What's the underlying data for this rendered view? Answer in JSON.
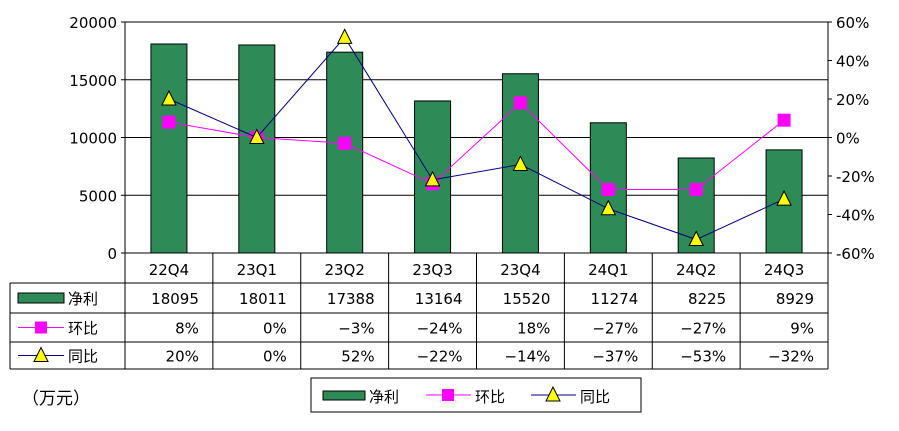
{
  "unit_label": "（万元）",
  "colors": {
    "bar": "#2E8B57",
    "mom": "#FF00FF",
    "yoy": "#000080",
    "yoy_marker": "#FFFF00"
  },
  "chart_data": {
    "type": "bar",
    "categories": [
      "22Q4",
      "23Q1",
      "23Q2",
      "23Q3",
      "23Q4",
      "24Q1",
      "24Q2",
      "24Q3"
    ],
    "series": [
      {
        "name": "净利",
        "type": "bar",
        "axis": "left",
        "values": [
          18095,
          18011,
          17388,
          13164,
          15520,
          11274,
          8225,
          8929
        ]
      },
      {
        "name": "环比",
        "type": "line",
        "axis": "right",
        "values": [
          8,
          0,
          -3,
          -24,
          18,
          -27,
          -27,
          9
        ],
        "labels": [
          "8%",
          "0%",
          "-3%",
          "-24%",
          "18%",
          "-27%",
          "-27%",
          "9%"
        ]
      },
      {
        "name": "同比",
        "type": "line",
        "axis": "right",
        "values": [
          20,
          0,
          52,
          -22,
          -14,
          -37,
          -53,
          -32
        ],
        "labels": [
          "20%",
          "0%",
          "52%",
          "-22%",
          "-14%",
          "-37%",
          "-53%",
          "-32%"
        ]
      }
    ],
    "left_axis": {
      "ylim": [
        0,
        20000
      ],
      "ticks": [
        "0",
        "5000",
        "10000",
        "15000",
        "20000"
      ]
    },
    "right_axis": {
      "ylim": [
        -60,
        60
      ],
      "ticks": [
        "-60%",
        "-40%",
        "-20%",
        "0%",
        "20%",
        "40%",
        "60%"
      ]
    },
    "grid": true,
    "legend": "bottom",
    "data_table": true
  }
}
